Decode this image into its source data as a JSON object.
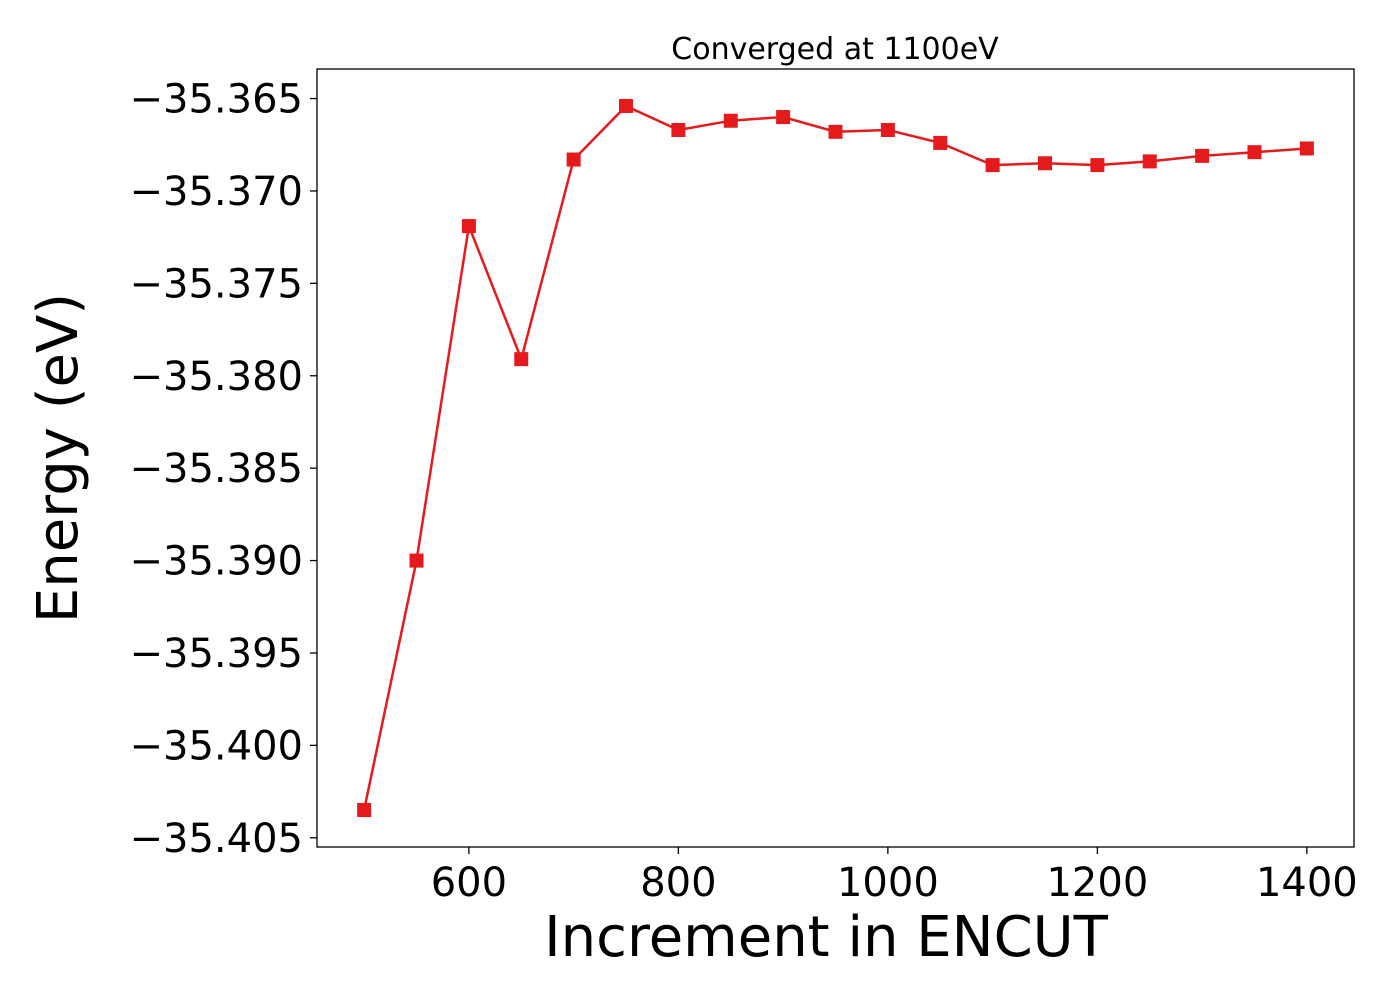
{
  "chart_data": {
    "type": "line",
    "title": "Converged at 1100eV",
    "xlabel": "Increment in ENCUT",
    "ylabel": "Energy (eV)",
    "xlim": [
      455,
      1445
    ],
    "ylim": [
      -35.4055,
      -35.3634
    ],
    "xticks": [
      600,
      800,
      1000,
      1200,
      1400
    ],
    "xtick_labels": [
      "600",
      "800",
      "1000",
      "1200",
      "1400"
    ],
    "yticks": [
      -35.365,
      -35.37,
      -35.375,
      -35.38,
      -35.385,
      -35.39,
      -35.395,
      -35.4,
      -35.405
    ],
    "ytick_labels": [
      "−35.365",
      "−35.370",
      "−35.375",
      "−35.380",
      "−35.385",
      "−35.390",
      "−35.395",
      "−35.400",
      "−35.405"
    ],
    "grid": false,
    "series": [
      {
        "color": "#e41a1c",
        "marker": "square",
        "x": [
          500,
          550,
          600,
          650,
          700,
          750,
          800,
          850,
          900,
          950,
          1000,
          1050,
          1100,
          1150,
          1200,
          1250,
          1300,
          1350,
          1400
        ],
        "y": [
          -35.4035,
          -35.39,
          -35.3719,
          -35.3791,
          -35.3683,
          -35.3654,
          -35.3667,
          -35.3662,
          -35.366,
          -35.3668,
          -35.3667,
          -35.3674,
          -35.3686,
          -35.3685,
          -35.3686,
          -35.3684,
          -35.3681,
          -35.3679,
          -35.3677
        ]
      }
    ]
  }
}
